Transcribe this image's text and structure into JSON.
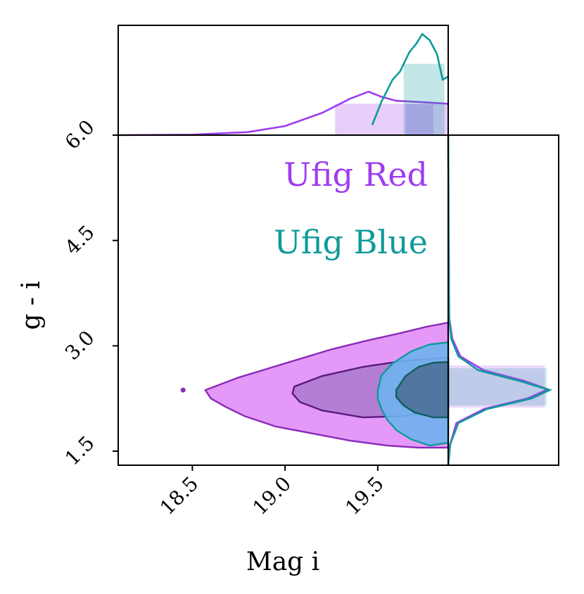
{
  "chart_data": {
    "type": "scatter",
    "subtype": "2d-kde-contour-with-marginal-histograms",
    "xlabel": "Mag i",
    "ylabel": "g - i",
    "xlim": [
      18.1,
      19.88
    ],
    "ylim": [
      1.3,
      6.0
    ],
    "x_ticks": [
      {
        "value": 18.5,
        "label": "18.5"
      },
      {
        "value": 19.0,
        "label": "19.0"
      },
      {
        "value": 19.5,
        "label": "19.5"
      }
    ],
    "y_ticks": [
      {
        "value": 1.5,
        "label": "1.5"
      },
      {
        "value": 3.0,
        "label": "3.0"
      },
      {
        "value": 4.5,
        "label": "4.5"
      },
      {
        "value": 6.0,
        "label": "6.0"
      }
    ],
    "legend": [
      {
        "name": "Ufig Red",
        "color": "#a03cf0"
      },
      {
        "name": "Ufig Blue",
        "color": "#0f9a9a"
      }
    ],
    "series": [
      {
        "name": "Ufig Red",
        "color": "#a03cf0",
        "fill": "#e394f8",
        "inner_fill": "#b07cd2",
        "edge": "#8a2ab8",
        "inner_edge": "#5a1a80",
        "outer_contour": [
          [
            18.57,
            2.37
          ],
          [
            18.75,
            2.55
          ],
          [
            19.0,
            2.75
          ],
          [
            19.25,
            2.95
          ],
          [
            19.45,
            3.08
          ],
          [
            19.62,
            3.18
          ],
          [
            19.76,
            3.27
          ],
          [
            19.88,
            3.33
          ],
          [
            19.88,
            1.55
          ],
          [
            19.72,
            1.55
          ],
          [
            19.55,
            1.58
          ],
          [
            19.35,
            1.65
          ],
          [
            19.15,
            1.75
          ],
          [
            18.95,
            1.85
          ],
          [
            18.78,
            2.0
          ],
          [
            18.68,
            2.13
          ],
          [
            18.6,
            2.25
          ]
        ],
        "inner_contour": [
          [
            19.05,
            2.42
          ],
          [
            19.2,
            2.57
          ],
          [
            19.42,
            2.7
          ],
          [
            19.65,
            2.79
          ],
          [
            19.88,
            2.83
          ],
          [
            19.88,
            2.1
          ],
          [
            19.65,
            2.0
          ],
          [
            19.42,
            1.98
          ],
          [
            19.2,
            2.08
          ],
          [
            19.08,
            2.2
          ],
          [
            19.04,
            2.32
          ]
        ],
        "outlier_points": [
          [
            18.45,
            2.37
          ]
        ],
        "top_marginal": [
          [
            18.1,
            0.0
          ],
          [
            18.5,
            0.005
          ],
          [
            18.8,
            0.03
          ],
          [
            19.0,
            0.09
          ],
          [
            19.2,
            0.22
          ],
          [
            19.35,
            0.36
          ],
          [
            19.45,
            0.43
          ],
          [
            19.52,
            0.38
          ],
          [
            19.6,
            0.34
          ],
          [
            19.7,
            0.33
          ],
          [
            19.8,
            0.32
          ],
          [
            19.88,
            0.31
          ]
        ],
        "top_marginal_band": [
          19.27,
          19.88
        ],
        "top_marginal_band_inner": [
          19.65,
          19.8
        ],
        "right_marginal": [
          [
            1.3,
            0.0
          ],
          [
            1.6,
            0.02
          ],
          [
            1.9,
            0.08
          ],
          [
            2.1,
            0.35
          ],
          [
            2.25,
            0.78
          ],
          [
            2.38,
            0.98
          ],
          [
            2.5,
            0.75
          ],
          [
            2.65,
            0.35
          ],
          [
            2.85,
            0.12
          ],
          [
            3.1,
            0.04
          ],
          [
            3.4,
            0.01
          ],
          [
            6.0,
            0.0
          ]
        ],
        "right_marginal_band": [
          2.12,
          2.72
        ]
      },
      {
        "name": "Ufig Blue",
        "color": "#0f9a9a",
        "fill": "#6fb3ee",
        "inner_fill": "#4f739c",
        "edge": "#0f9a9a",
        "inner_edge": "#0d5f5f",
        "outer_contour": [
          [
            19.5,
            2.36
          ],
          [
            19.52,
            2.58
          ],
          [
            19.58,
            2.75
          ],
          [
            19.68,
            2.92
          ],
          [
            19.78,
            3.02
          ],
          [
            19.88,
            3.05
          ],
          [
            19.88,
            1.62
          ],
          [
            19.78,
            1.58
          ],
          [
            19.68,
            1.67
          ],
          [
            19.6,
            1.8
          ],
          [
            19.55,
            1.95
          ],
          [
            19.52,
            2.1
          ],
          [
            19.5,
            2.25
          ]
        ],
        "inner_contour": [
          [
            19.6,
            2.37
          ],
          [
            19.65,
            2.57
          ],
          [
            19.72,
            2.7
          ],
          [
            19.8,
            2.76
          ],
          [
            19.88,
            2.77
          ],
          [
            19.88,
            1.98
          ],
          [
            19.8,
            1.98
          ],
          [
            19.7,
            2.05
          ],
          [
            19.64,
            2.15
          ],
          [
            19.6,
            2.27
          ]
        ],
        "outlier_points": [],
        "top_marginal": [
          [
            19.47,
            0.1
          ],
          [
            19.52,
            0.33
          ],
          [
            19.58,
            0.55
          ],
          [
            19.62,
            0.63
          ],
          [
            19.67,
            0.82
          ],
          [
            19.71,
            0.91
          ],
          [
            19.74,
            1.0
          ],
          [
            19.78,
            0.94
          ],
          [
            19.82,
            0.8
          ],
          [
            19.85,
            0.55
          ],
          [
            19.88,
            0.58
          ]
        ],
        "top_marginal_band": [
          19.64,
          19.86
        ],
        "right_marginal": [
          [
            1.3,
            0.0
          ],
          [
            1.6,
            0.02
          ],
          [
            1.9,
            0.1
          ],
          [
            2.1,
            0.38
          ],
          [
            2.25,
            0.82
          ],
          [
            2.37,
            1.0
          ],
          [
            2.5,
            0.7
          ],
          [
            2.65,
            0.3
          ],
          [
            2.85,
            0.1
          ],
          [
            3.1,
            0.03
          ],
          [
            3.4,
            0.01
          ],
          [
            6.0,
            0.0
          ]
        ],
        "right_marginal_band": [
          2.15,
          2.68
        ]
      }
    ]
  }
}
